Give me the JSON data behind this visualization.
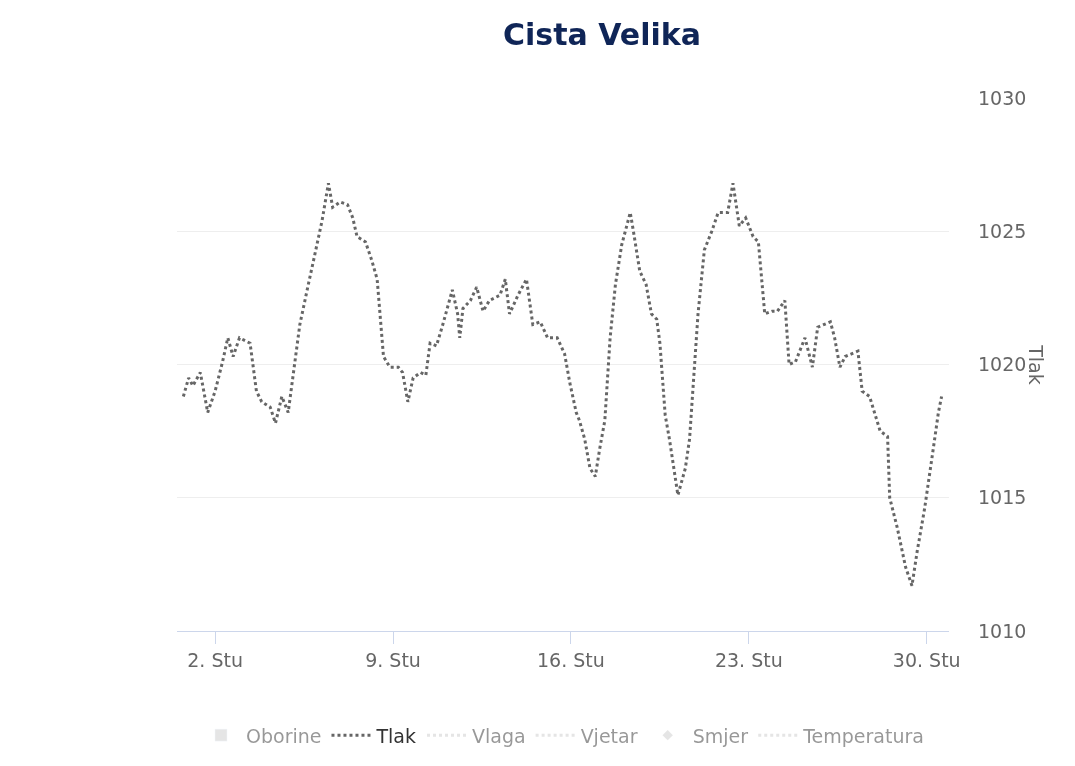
{
  "chart_data": {
    "type": "line",
    "title": "Cista Velika",
    "ylabel": "Tlak",
    "xlim": [
      "--10-31T12:00",
      "--11-30T21:00"
    ],
    "xticks": [
      {
        "value": "--11-02",
        "label": "2. Stu"
      },
      {
        "value": "--11-09",
        "label": "9. Stu"
      },
      {
        "value": "--11-16",
        "label": "16. Stu"
      },
      {
        "value": "--11-23",
        "label": "23. Stu"
      },
      {
        "value": "--11-30",
        "label": "30. Stu"
      }
    ],
    "ylim": [
      1010,
      1030
    ],
    "yticks": [
      1010,
      1015,
      1020,
      1025,
      1030
    ],
    "grid": "y",
    "legend": "bottom",
    "line_style": "dotted",
    "series": [
      {
        "name": "Oborine",
        "type": "bar",
        "color": "#cccccc"
      },
      {
        "name": "Tlak",
        "color": "#666666",
        "x": [
          "--10-31T18:00",
          "--10-31T23:00",
          "--11-01T03:00",
          "--11-01T10:00",
          "--11-01T17:00",
          "--11-02T00:00",
          "--11-02T07:00",
          "--11-02T12:00",
          "--11-02T17:00",
          "--11-02T23:00",
          "--11-03T09:00",
          "--11-03T15:00",
          "--11-03T20:00",
          "--11-04T04:00",
          "--11-04T09:00",
          "--11-04T15:00",
          "--11-04T21:00",
          "--11-05T02:00",
          "--11-05T08:00",
          "--11-05T16:00",
          "--11-05T22:00",
          "--11-06T05:00",
          "--11-06T11:00",
          "--11-06T15:00",
          "--11-06T22:00",
          "--11-07T05:00",
          "--11-07T10:00",
          "--11-07T14:00",
          "--11-07T22:00",
          "--11-08T04:00",
          "--11-08T09:00",
          "--11-08T15:00",
          "--11-08T21:00",
          "--11-09T05:00",
          "--11-09T09:00",
          "--11-09T14:00",
          "--11-09T19:00",
          "--11-10T02:00",
          "--11-10T07:00",
          "--11-10T11:00",
          "--11-10T17:00",
          "--11-10T23:00",
          "--11-11T08:00",
          "--11-11T13:00",
          "--11-11T15:00",
          "--11-11T18:00",
          "--11-12T01:00",
          "--11-12T07:00",
          "--11-12T13:00",
          "--11-12T19:00",
          "--11-13T05:00",
          "--11-13T10:00",
          "--11-13T14:00",
          "--11-13T22:00",
          "--11-14T06:00",
          "--11-14T12:00",
          "--11-14T19:00",
          "--11-15T02:00",
          "--11-15T11:00",
          "--11-15T18:00",
          "--11-15T23:00",
          "--11-16T05:00",
          "--11-16T08:00",
          "--11-16T13:00",
          "--11-16T18:00",
          "--11-16T23:00",
          "--11-17T03:00",
          "--11-17T08:00",
          "--11-17T13:00",
          "--11-17T18:00",
          "--11-18T00:00",
          "--11-18T08:00",
          "--11-18T11:00",
          "--11-18T17:00",
          "--11-18T23:00",
          "--11-19T04:00",
          "--11-19T09:00",
          "--11-19T12:00",
          "--11-19T17:00",
          "--11-19T21:00",
          "--11-20T05:00",
          "--11-20T12:00",
          "--11-20T16:00",
          "--11-21T00:00",
          "--11-21T06:00",
          "--11-21T13:00",
          "--11-21T19:00",
          "--11-22T04:00",
          "--11-22T09:00",
          "--11-22T15:00",
          "--11-22T21:00",
          "--11-23T04:00",
          "--11-23T09:00",
          "--11-23T15:00",
          "--11-23T22:00",
          "--11-24T03:00",
          "--11-24T10:00",
          "--11-24T14:00",
          "--11-24T20:00",
          "--11-25T05:00",
          "--11-25T12:00",
          "--11-25T17:00",
          "--11-26T05:00",
          "--11-26T09:00",
          "--11-26T14:00",
          "--11-26T19:00",
          "--11-27T01:00",
          "--11-27T07:00",
          "--11-27T11:00",
          "--11-27T18:00",
          "--11-28T04:00",
          "--11-28T11:00",
          "--11-28T13:00",
          "--11-28T20:00",
          "--11-29T04:00",
          "--11-29T10:00",
          "--11-29T15:00",
          "--11-29T22:00",
          "--11-30T06:00",
          "--11-30T11:00",
          "--11-30T14:00"
        ],
        "values": [
          1018.8,
          1019.5,
          1019.2,
          1019.7,
          1018.2,
          1019.0,
          1020.1,
          1021.0,
          1020.3,
          1021.0,
          1020.8,
          1019.0,
          1018.6,
          1018.4,
          1017.8,
          1018.8,
          1018.2,
          1019.7,
          1021.5,
          1023.0,
          1024.1,
          1025.4,
          1026.8,
          1025.9,
          1026.1,
          1026.0,
          1025.5,
          1024.8,
          1024.6,
          1023.9,
          1023.2,
          1020.3,
          1019.9,
          1019.9,
          1019.7,
          1018.6,
          1019.5,
          1019.7,
          1019.6,
          1020.8,
          1020.7,
          1021.5,
          1022.8,
          1021.9,
          1021.0,
          1022.1,
          1022.4,
          1022.9,
          1022.0,
          1022.4,
          1022.6,
          1023.2,
          1021.9,
          1022.6,
          1023.2,
          1021.5,
          1021.6,
          1021.0,
          1021.0,
          1020.4,
          1019.3,
          1018.2,
          1017.9,
          1017.2,
          1016.1,
          1015.8,
          1016.8,
          1017.9,
          1021.0,
          1023.0,
          1024.5,
          1025.7,
          1025.0,
          1023.5,
          1023.0,
          1021.9,
          1021.7,
          1020.8,
          1018.1,
          1017.2,
          1015.1,
          1016.1,
          1017.2,
          1021.9,
          1024.3,
          1025.0,
          1025.7,
          1025.7,
          1026.8,
          1025.2,
          1025.5,
          1024.8,
          1024.6,
          1021.9,
          1022.0,
          1022.0,
          1022.4,
          1020.0,
          1020.1,
          1021.0,
          1019.9,
          1021.4,
          1021.6,
          1021.0,
          1019.9,
          1020.3,
          1020.4,
          1020.5,
          1019.0,
          1018.8,
          1017.5,
          1017.3,
          1015.0,
          1013.9,
          1012.4,
          1011.7,
          1013.0,
          1014.6,
          1016.8,
          1018.2,
          1018.8
        ]
      },
      {
        "name": "Vlaga",
        "type": "line",
        "color": "#cccccc"
      },
      {
        "name": "Vjetar",
        "type": "line",
        "color": "#cccccc"
      },
      {
        "name": "Smjer",
        "type": "scatter",
        "color": "#cccccc"
      },
      {
        "name": "Temperatura",
        "type": "line",
        "color": "#cccccc"
      }
    ]
  }
}
